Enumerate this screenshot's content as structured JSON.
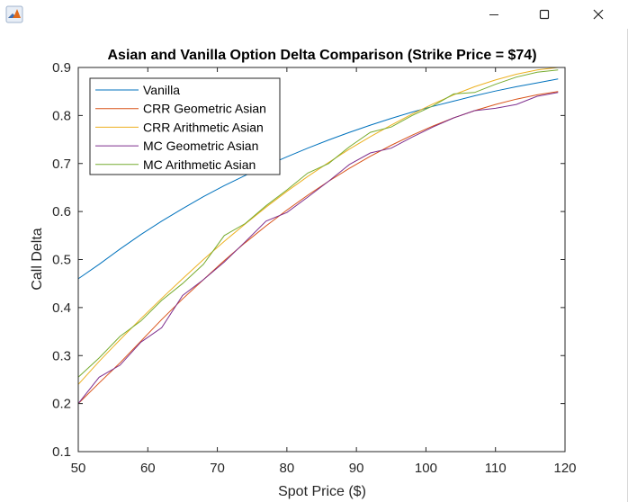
{
  "window": {
    "controls": {
      "minimize": "—",
      "maximize": "☐",
      "close": "✕"
    }
  },
  "colors": {
    "vanilla": "#0072bd",
    "crr_geometric": "#d95319",
    "crr_arithmetic": "#edb120",
    "mc_geometric": "#7e2f8e",
    "mc_arithmetic": "#77ac30",
    "axis": "#262626",
    "legend_border": "#262626",
    "background": "#ffffff"
  },
  "chart_data": {
    "type": "line",
    "title": "Asian and Vanilla Option Delta Comparison (Strike Price = $74)",
    "xlabel": "Spot Price ($)",
    "ylabel": "Call Delta",
    "xlim": [
      50,
      120
    ],
    "ylim": [
      0.1,
      0.9
    ],
    "xticks": [
      50,
      60,
      70,
      80,
      90,
      100,
      110,
      120
    ],
    "yticks": [
      0.1,
      0.2,
      0.3,
      0.4,
      0.5,
      0.6,
      0.7,
      0.8,
      0.9
    ],
    "xtick_labels": [
      "50",
      "60",
      "70",
      "80",
      "90",
      "100",
      "110",
      "120"
    ],
    "ytick_labels": [
      "0.1",
      "0.2",
      "0.3",
      "0.4",
      "0.5",
      "0.6",
      "0.7",
      "0.8",
      "0.9"
    ],
    "grid": false,
    "legend_position": "top-left",
    "series": [
      {
        "name": "Vanilla",
        "color_key": "vanilla",
        "x": [
          50,
          53,
          56,
          59,
          62,
          65,
          68,
          71,
          74,
          77,
          80,
          83,
          86,
          89,
          92,
          95,
          98,
          101,
          104,
          107,
          110,
          113,
          116,
          119
        ],
        "y": [
          0.46,
          0.49,
          0.522,
          0.552,
          0.58,
          0.606,
          0.631,
          0.654,
          0.675,
          0.695,
          0.714,
          0.732,
          0.749,
          0.765,
          0.78,
          0.794,
          0.807,
          0.819,
          0.83,
          0.841,
          0.851,
          0.86,
          0.868,
          0.876
        ]
      },
      {
        "name": "CRR Geometric Asian",
        "color_key": "crr_geometric",
        "x": [
          50,
          53,
          56,
          59,
          62,
          65,
          68,
          71,
          74,
          77,
          80,
          83,
          86,
          89,
          92,
          95,
          98,
          101,
          104,
          107,
          110,
          113,
          116,
          119
        ],
        "y": [
          0.2,
          0.243,
          0.285,
          0.33,
          0.375,
          0.418,
          0.458,
          0.498,
          0.535,
          0.57,
          0.603,
          0.634,
          0.663,
          0.69,
          0.715,
          0.738,
          0.759,
          0.778,
          0.795,
          0.81,
          0.823,
          0.834,
          0.843,
          0.85
        ]
      },
      {
        "name": "CRR Arithmetic Asian",
        "color_key": "crr_arithmetic",
        "x": [
          50,
          53,
          56,
          59,
          62,
          65,
          68,
          71,
          74,
          77,
          80,
          83,
          86,
          89,
          92,
          95,
          98,
          101,
          104,
          107,
          110,
          113,
          116,
          119
        ],
        "y": [
          0.24,
          0.288,
          0.333,
          0.377,
          0.419,
          0.46,
          0.5,
          0.538,
          0.574,
          0.609,
          0.642,
          0.673,
          0.702,
          0.73,
          0.756,
          0.78,
          0.803,
          0.824,
          0.843,
          0.86,
          0.874,
          0.886,
          0.895,
          0.9
        ]
      },
      {
        "name": "MC Geometric Asian",
        "color_key": "mc_geometric",
        "x": [
          50,
          53,
          56,
          59,
          62,
          65,
          68,
          71,
          74,
          77,
          80,
          83,
          86,
          89,
          92,
          95,
          98,
          101,
          104,
          107,
          110,
          113,
          116,
          119
        ],
        "y": [
          0.2,
          0.255,
          0.28,
          0.328,
          0.358,
          0.425,
          0.458,
          0.495,
          0.537,
          0.58,
          0.598,
          0.63,
          0.663,
          0.698,
          0.722,
          0.732,
          0.755,
          0.776,
          0.795,
          0.81,
          0.815,
          0.823,
          0.84,
          0.848
        ]
      },
      {
        "name": "MC Arithmetic Asian",
        "color_key": "mc_arithmetic",
        "x": [
          50,
          53,
          56,
          59,
          62,
          65,
          68,
          71,
          74,
          77,
          80,
          83,
          86,
          89,
          92,
          95,
          98,
          101,
          104,
          107,
          110,
          113,
          116,
          119
        ],
        "y": [
          0.255,
          0.295,
          0.34,
          0.372,
          0.415,
          0.45,
          0.49,
          0.55,
          0.575,
          0.612,
          0.645,
          0.68,
          0.7,
          0.735,
          0.765,
          0.776,
          0.8,
          0.82,
          0.845,
          0.848,
          0.865,
          0.88,
          0.89,
          0.895
        ]
      }
    ]
  }
}
